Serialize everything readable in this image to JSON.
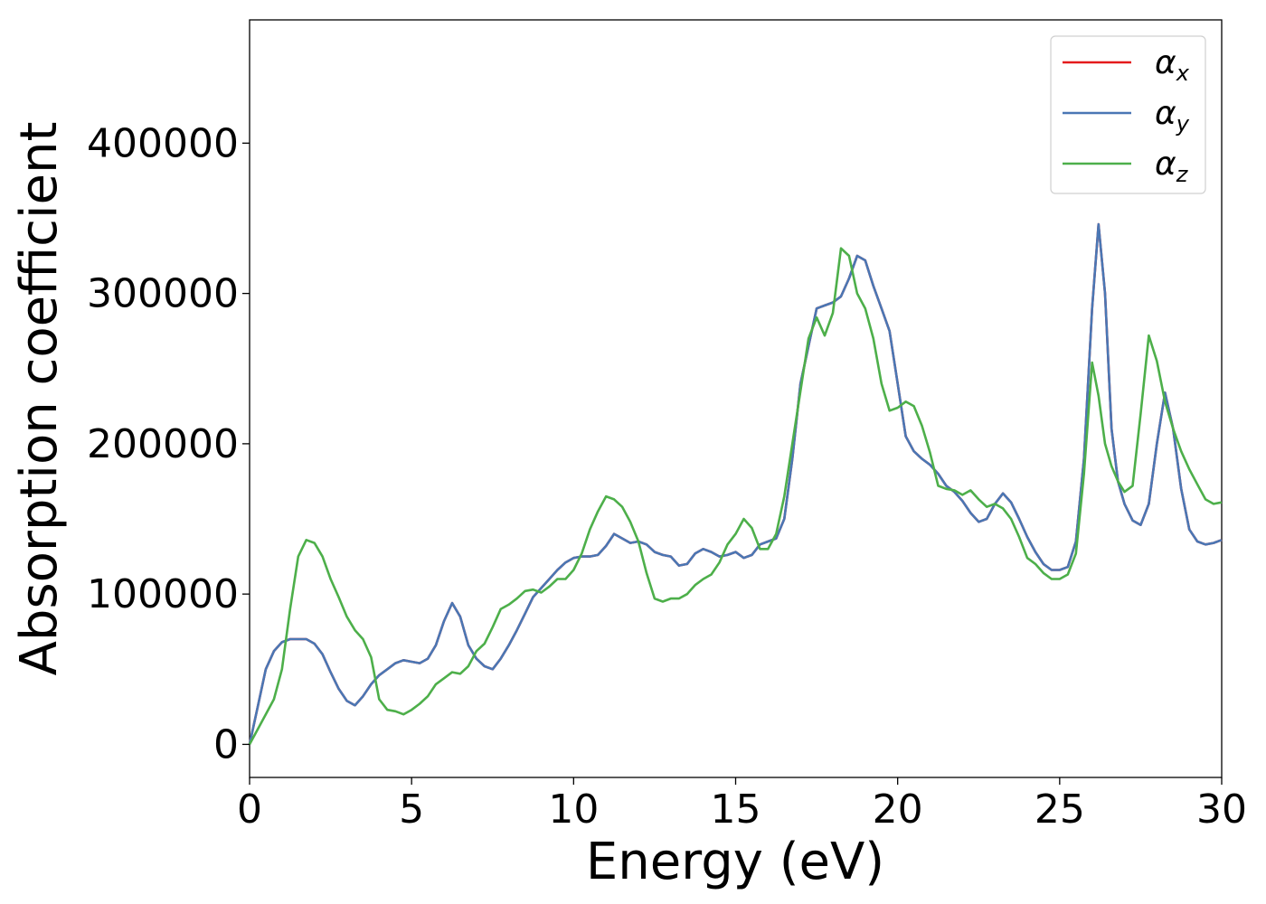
{
  "chart_data": {
    "type": "line",
    "xlabel": "Energy (eV)",
    "ylabel": "Absorption coefficient",
    "xlim": [
      0,
      30
    ],
    "ylim": [
      -22000,
      482000
    ],
    "xticks": [
      0,
      5,
      10,
      15,
      20,
      25,
      30
    ],
    "yticks": [
      0,
      100000,
      200000,
      300000,
      400000
    ],
    "grid": false,
    "legend_position": "top-right",
    "series": [
      {
        "name": "αx",
        "symbol": "α",
        "sub": "x",
        "color": "#e41a1c",
        "x": [
          0,
          0.25,
          0.5,
          0.75,
          1.0,
          1.25,
          1.5,
          1.75,
          2.0,
          2.25,
          2.5,
          2.75,
          3.0,
          3.25,
          3.5,
          3.75,
          4.0,
          4.25,
          4.5,
          4.75,
          5.0,
          5.25,
          5.5,
          5.75,
          6.0,
          6.25,
          6.5,
          6.75,
          7.0,
          7.25,
          7.5,
          7.75,
          8.0,
          8.25,
          8.5,
          8.75,
          9.0,
          9.25,
          9.5,
          9.75,
          10.0,
          10.25,
          10.5,
          10.75,
          11.0,
          11.25,
          11.5,
          11.75,
          12.0,
          12.25,
          12.5,
          12.75,
          13.0,
          13.25,
          13.5,
          13.75,
          14.0,
          14.25,
          14.5,
          14.75,
          15.0,
          15.25,
          15.5,
          15.75,
          16.0,
          16.25,
          16.5,
          16.75,
          17.0,
          17.25,
          17.5,
          17.75,
          18.0,
          18.25,
          18.5,
          18.75,
          19.0,
          19.25,
          19.5,
          19.75,
          20.0,
          20.25,
          20.5,
          20.75,
          21.0,
          21.25,
          21.5,
          21.75,
          22.0,
          22.25,
          22.5,
          22.75,
          23.0,
          23.25,
          23.5,
          23.75,
          24.0,
          24.25,
          24.5,
          24.75,
          25.0,
          25.25,
          25.5,
          25.75,
          26.0,
          26.2,
          26.4,
          26.6,
          26.8,
          27.0,
          27.25,
          27.5,
          27.75,
          28.0,
          28.25,
          28.5,
          28.75,
          29.0,
          29.25,
          29.5,
          29.75,
          30.0
        ],
        "y": [
          0,
          25000,
          50000,
          62000,
          68000,
          70000,
          70000,
          70000,
          67000,
          60000,
          48000,
          37000,
          29000,
          26000,
          32000,
          40000,
          46000,
          50000,
          54000,
          56000,
          55000,
          54000,
          57000,
          66000,
          82000,
          94000,
          85000,
          66000,
          57000,
          52000,
          50000,
          57000,
          66000,
          76000,
          87000,
          98000,
          104000,
          110000,
          116000,
          121000,
          124000,
          125000,
          125000,
          126000,
          132000,
          140000,
          137000,
          134000,
          135000,
          133000,
          128000,
          126000,
          125000,
          119000,
          120000,
          127000,
          130000,
          128000,
          125000,
          126000,
          128000,
          124000,
          126000,
          133000,
          135000,
          137000,
          150000,
          190000,
          240000,
          265000,
          290000,
          292000,
          294000,
          298000,
          310000,
          325000,
          322000,
          305000,
          290000,
          275000,
          240000,
          205000,
          195000,
          190000,
          186000,
          180000,
          172000,
          168000,
          162000,
          154000,
          148000,
          150000,
          160000,
          167000,
          161000,
          150000,
          138000,
          128000,
          120000,
          116000,
          116000,
          118000,
          135000,
          190000,
          290000,
          346000,
          300000,
          210000,
          175000,
          160000,
          149000,
          146000,
          160000,
          200000,
          234000,
          210000,
          170000,
          143000,
          135000,
          133000,
          134000,
          136000
        ]
      },
      {
        "name": "αy",
        "symbol": "α",
        "sub": "y",
        "color": "#4a77b4",
        "x": [
          0,
          0.25,
          0.5,
          0.75,
          1.0,
          1.25,
          1.5,
          1.75,
          2.0,
          2.25,
          2.5,
          2.75,
          3.0,
          3.25,
          3.5,
          3.75,
          4.0,
          4.25,
          4.5,
          4.75,
          5.0,
          5.25,
          5.5,
          5.75,
          6.0,
          6.25,
          6.5,
          6.75,
          7.0,
          7.25,
          7.5,
          7.75,
          8.0,
          8.25,
          8.5,
          8.75,
          9.0,
          9.25,
          9.5,
          9.75,
          10.0,
          10.25,
          10.5,
          10.75,
          11.0,
          11.25,
          11.5,
          11.75,
          12.0,
          12.25,
          12.5,
          12.75,
          13.0,
          13.25,
          13.5,
          13.75,
          14.0,
          14.25,
          14.5,
          14.75,
          15.0,
          15.25,
          15.5,
          15.75,
          16.0,
          16.25,
          16.5,
          16.75,
          17.0,
          17.25,
          17.5,
          17.75,
          18.0,
          18.25,
          18.5,
          18.75,
          19.0,
          19.25,
          19.5,
          19.75,
          20.0,
          20.25,
          20.5,
          20.75,
          21.0,
          21.25,
          21.5,
          21.75,
          22.0,
          22.25,
          22.5,
          22.75,
          23.0,
          23.25,
          23.5,
          23.75,
          24.0,
          24.25,
          24.5,
          24.75,
          25.0,
          25.25,
          25.5,
          25.75,
          26.0,
          26.2,
          26.4,
          26.6,
          26.8,
          27.0,
          27.25,
          27.5,
          27.75,
          28.0,
          28.25,
          28.5,
          28.75,
          29.0,
          29.25,
          29.5,
          29.75,
          30.0
        ],
        "y": [
          0,
          25000,
          50000,
          62000,
          68000,
          70000,
          70000,
          70000,
          67000,
          60000,
          48000,
          37000,
          29000,
          26000,
          32000,
          40000,
          46000,
          50000,
          54000,
          56000,
          55000,
          54000,
          57000,
          66000,
          82000,
          94000,
          85000,
          66000,
          57000,
          52000,
          50000,
          57000,
          66000,
          76000,
          87000,
          98000,
          104000,
          110000,
          116000,
          121000,
          124000,
          125000,
          125000,
          126000,
          132000,
          140000,
          137000,
          134000,
          135000,
          133000,
          128000,
          126000,
          125000,
          119000,
          120000,
          127000,
          130000,
          128000,
          125000,
          126000,
          128000,
          124000,
          126000,
          133000,
          135000,
          137000,
          150000,
          190000,
          240000,
          265000,
          290000,
          292000,
          294000,
          298000,
          310000,
          325000,
          322000,
          305000,
          290000,
          275000,
          240000,
          205000,
          195000,
          190000,
          186000,
          180000,
          172000,
          168000,
          162000,
          154000,
          148000,
          150000,
          160000,
          167000,
          161000,
          150000,
          138000,
          128000,
          120000,
          116000,
          116000,
          118000,
          135000,
          190000,
          290000,
          346000,
          300000,
          210000,
          175000,
          160000,
          149000,
          146000,
          160000,
          200000,
          234000,
          210000,
          170000,
          143000,
          135000,
          133000,
          134000,
          136000
        ]
      },
      {
        "name": "αz",
        "symbol": "α",
        "sub": "z",
        "color": "#4daf4a",
        "x": [
          0,
          0.25,
          0.5,
          0.75,
          1.0,
          1.25,
          1.5,
          1.75,
          2.0,
          2.25,
          2.5,
          2.75,
          3.0,
          3.25,
          3.5,
          3.75,
          4.0,
          4.25,
          4.5,
          4.75,
          5.0,
          5.25,
          5.5,
          5.75,
          6.0,
          6.25,
          6.5,
          6.75,
          7.0,
          7.25,
          7.5,
          7.75,
          8.0,
          8.25,
          8.5,
          8.75,
          9.0,
          9.25,
          9.5,
          9.75,
          10.0,
          10.25,
          10.5,
          10.75,
          11.0,
          11.25,
          11.5,
          11.75,
          12.0,
          12.25,
          12.5,
          12.75,
          13.0,
          13.25,
          13.5,
          13.75,
          14.0,
          14.25,
          14.5,
          14.75,
          15.0,
          15.25,
          15.5,
          15.75,
          16.0,
          16.25,
          16.5,
          16.75,
          17.0,
          17.25,
          17.5,
          17.75,
          18.0,
          18.25,
          18.5,
          18.75,
          19.0,
          19.25,
          19.5,
          19.75,
          20.0,
          20.25,
          20.5,
          20.75,
          21.0,
          21.25,
          21.5,
          21.75,
          22.0,
          22.25,
          22.5,
          22.75,
          23.0,
          23.25,
          23.5,
          23.75,
          24.0,
          24.25,
          24.5,
          24.75,
          25.0,
          25.25,
          25.5,
          25.75,
          26.0,
          26.2,
          26.4,
          26.6,
          26.8,
          27.0,
          27.25,
          27.5,
          27.75,
          28.0,
          28.25,
          28.5,
          28.75,
          29.0,
          29.25,
          29.5,
          29.75,
          30.0
        ],
        "y": [
          0,
          10000,
          20000,
          30000,
          50000,
          90000,
          125000,
          136000,
          134000,
          125000,
          110000,
          98000,
          85000,
          76000,
          70000,
          58000,
          30000,
          23000,
          22000,
          20000,
          23000,
          27000,
          32000,
          40000,
          44000,
          48000,
          47000,
          52000,
          62000,
          67000,
          78000,
          90000,
          93000,
          97000,
          102000,
          103000,
          101000,
          105000,
          110000,
          110000,
          116000,
          127000,
          143000,
          155000,
          165000,
          163000,
          158000,
          148000,
          135000,
          114000,
          97000,
          95000,
          97000,
          97000,
          100000,
          106000,
          110000,
          113000,
          121000,
          133000,
          140000,
          150000,
          144000,
          130000,
          130000,
          140000,
          165000,
          200000,
          235000,
          270000,
          284000,
          272000,
          287000,
          330000,
          325000,
          300000,
          290000,
          270000,
          240000,
          222000,
          224000,
          228000,
          225000,
          212000,
          194000,
          172000,
          170000,
          169000,
          166000,
          169000,
          163000,
          158000,
          160000,
          157000,
          150000,
          138000,
          124000,
          120000,
          114000,
          110000,
          110000,
          113000,
          127000,
          180000,
          254000,
          232000,
          200000,
          185000,
          175000,
          168000,
          172000,
          220000,
          272000,
          255000,
          228000,
          210000,
          195000,
          183000,
          173000,
          163000,
          160000,
          161000
        ]
      }
    ]
  }
}
